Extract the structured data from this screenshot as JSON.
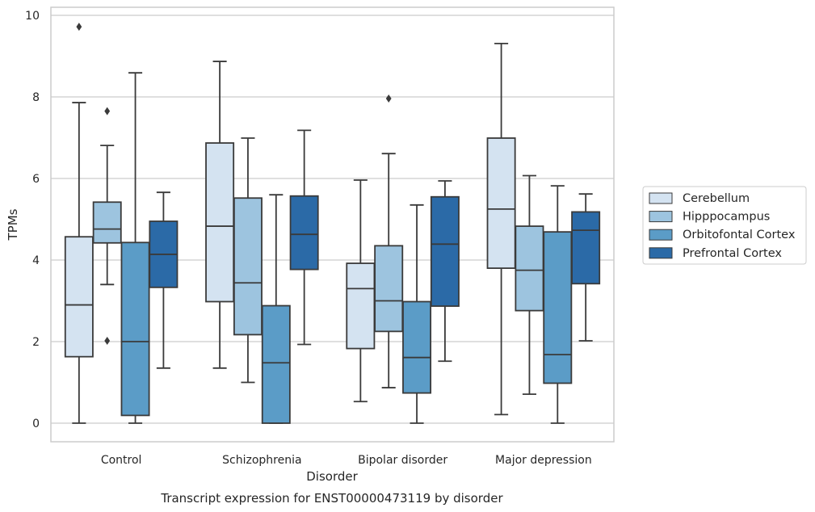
{
  "chart_data": {
    "type": "box",
    "caption": "Transcript expression for ENST00000473119 by disorder",
    "xlabel": "Disorder",
    "ylabel": "TPMs",
    "ylim": [
      -0.45,
      10.2
    ],
    "yticks": [
      0,
      2,
      4,
      6,
      8,
      10
    ],
    "grid": "horizontal",
    "legend_position": "right, outside plot",
    "categories": [
      "Control",
      "Schizophrenia",
      "Bipolar disorder",
      "Major depression"
    ],
    "series": [
      {
        "name": "Cerebellum",
        "color": "#d4e3f1",
        "boxes": [
          {
            "whisker_low": 0.0,
            "q1": 1.63,
            "median": 2.9,
            "q3": 4.57,
            "whisker_high": 7.86,
            "outliers": [
              9.72
            ]
          },
          {
            "whisker_low": 1.35,
            "q1": 2.98,
            "median": 4.83,
            "q3": 6.87,
            "whisker_high": 8.87,
            "outliers": []
          },
          {
            "whisker_low": 0.53,
            "q1": 1.83,
            "median": 3.3,
            "q3": 3.92,
            "whisker_high": 5.96,
            "outliers": []
          },
          {
            "whisker_low": 0.21,
            "q1": 3.8,
            "median": 5.25,
            "q3": 6.99,
            "whisker_high": 9.31,
            "outliers": []
          }
        ]
      },
      {
        "name": "Hipppocampus",
        "color": "#9dc4df",
        "boxes": [
          {
            "whisker_low": 3.4,
            "q1": 4.42,
            "median": 4.76,
            "q3": 5.42,
            "whisker_high": 6.81,
            "outliers": [
              7.65,
              2.02
            ]
          },
          {
            "whisker_low": 1.0,
            "q1": 2.17,
            "median": 3.44,
            "q3": 5.52,
            "whisker_high": 6.99,
            "outliers": []
          },
          {
            "whisker_low": 0.87,
            "q1": 2.25,
            "median": 3.0,
            "q3": 4.35,
            "whisker_high": 6.61,
            "outliers": [
              7.96
            ]
          },
          {
            "whisker_low": 0.71,
            "q1": 2.76,
            "median": 3.75,
            "q3": 4.83,
            "whisker_high": 6.07,
            "outliers": []
          }
        ]
      },
      {
        "name": "Orbitofontal Cortex",
        "color": "#5b9cc7",
        "boxes": [
          {
            "whisker_low": 0.0,
            "q1": 0.19,
            "median": 2.0,
            "q3": 4.43,
            "whisker_high": 8.59,
            "outliers": []
          },
          {
            "whisker_low": 0.0,
            "q1": 0.0,
            "median": 1.48,
            "q3": 2.88,
            "whisker_high": 5.6,
            "outliers": []
          },
          {
            "whisker_low": 0.0,
            "q1": 0.74,
            "median": 1.61,
            "q3": 2.98,
            "whisker_high": 5.35,
            "outliers": []
          },
          {
            "whisker_low": 0.0,
            "q1": 0.98,
            "median": 1.68,
            "q3": 4.69,
            "whisker_high": 5.82,
            "outliers": []
          }
        ]
      },
      {
        "name": "Prefrontal Cortex",
        "color": "#2b6aa7",
        "boxes": [
          {
            "whisker_low": 1.35,
            "q1": 3.33,
            "median": 4.14,
            "q3": 4.95,
            "whisker_high": 5.66,
            "outliers": []
          },
          {
            "whisker_low": 1.93,
            "q1": 3.77,
            "median": 4.63,
            "q3": 5.57,
            "whisker_high": 7.18,
            "outliers": []
          },
          {
            "whisker_low": 1.52,
            "q1": 2.87,
            "median": 4.39,
            "q3": 5.55,
            "whisker_high": 5.94,
            "outliers": []
          },
          {
            "whisker_low": 2.02,
            "q1": 3.42,
            "median": 4.73,
            "q3": 5.18,
            "whisker_high": 5.62,
            "outliers": []
          }
        ]
      }
    ]
  }
}
